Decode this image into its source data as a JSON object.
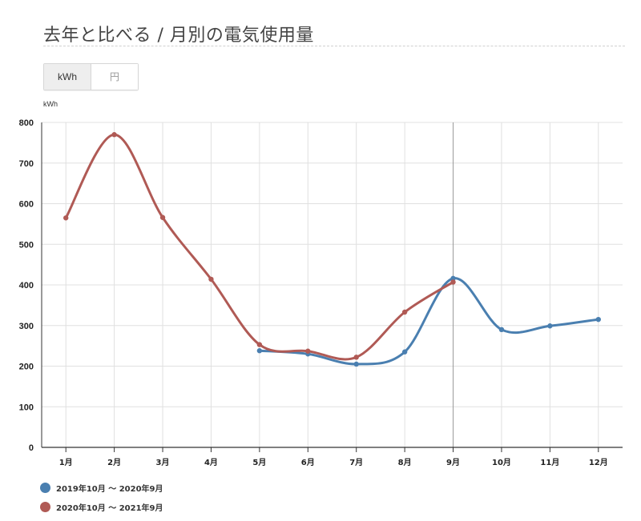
{
  "page": {
    "title": "去年と比べる / 月別の電気使用量"
  },
  "toggle": {
    "options": [
      "kWh",
      "円"
    ],
    "selected": "kWh"
  },
  "colors": {
    "series1": "#4a7fb0",
    "series2": "#b05a55",
    "grid": "#e0e0e0",
    "axis": "#333333",
    "highlight_line": "#999999"
  },
  "chart_data": {
    "type": "line",
    "ylabel": "kWh",
    "ylim": [
      0,
      800
    ],
    "yticks": [
      0,
      100,
      200,
      300,
      400,
      500,
      600,
      700,
      800
    ],
    "categories": [
      "1月",
      "2月",
      "3月",
      "4月",
      "5月",
      "6月",
      "7月",
      "8月",
      "9月",
      "10月",
      "11月",
      "12月"
    ],
    "highlight_category": "9月",
    "grid": true,
    "legend_position": "bottom-left",
    "series": [
      {
        "name": "2019年10月 〜 2020年9月",
        "values": [
          null,
          null,
          null,
          null,
          238,
          230,
          205,
          235,
          416,
          290,
          299,
          315
        ]
      },
      {
        "name": "2020年10月 〜 2021年9月",
        "values": [
          565,
          770,
          566,
          414,
          253,
          237,
          222,
          333,
          407,
          null,
          null,
          null
        ]
      }
    ]
  }
}
